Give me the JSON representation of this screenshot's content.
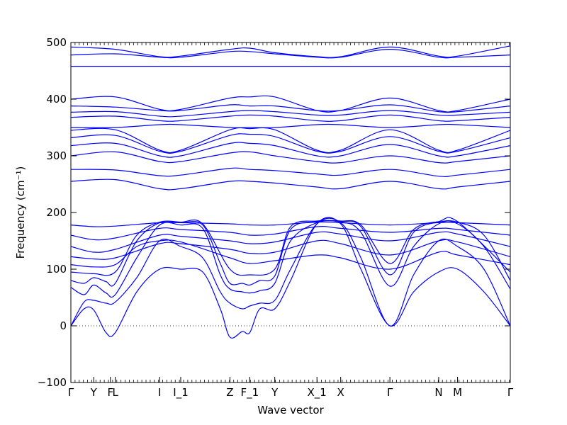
{
  "chart_data": {
    "type": "line",
    "title": "",
    "xlabel": "Wave vector",
    "ylabel": "Frequency (cm⁻¹)",
    "ylim": [
      -100,
      500
    ],
    "yticks": [
      -100,
      0,
      100,
      200,
      300,
      400,
      500
    ],
    "xrange": [
      0,
      1000
    ],
    "kpoints": [
      {
        "label": "Γ",
        "x": 0
      },
      {
        "label": "Y",
        "x": 52
      },
      {
        "label": "F",
        "x": 90
      },
      {
        "label": "L",
        "x": 101
      },
      {
        "label": "I",
        "x": 202
      },
      {
        "label": "I_1",
        "x": 250
      },
      {
        "label": "Z",
        "x": 362
      },
      {
        "label": "F_1",
        "x": 407
      },
      {
        "label": "Y",
        "x": 464
      },
      {
        "label": "X_1",
        "x": 560
      },
      {
        "label": "X",
        "x": 614
      },
      {
        "label": "Γ",
        "x": 726
      },
      {
        "label": "N",
        "x": 837
      },
      {
        "label": "M",
        "x": 880
      },
      {
        "label": "Γ",
        "x": 1000
      }
    ],
    "minor_tick_spacing": 9.5,
    "zero_line": true,
    "grid": false,
    "series_color": "#0000ff",
    "series": [
      {
        "x": [
          0,
          30,
          52,
          80,
          101,
          150,
          202,
          250,
          300,
          340,
          362,
          390,
          407,
          430,
          464,
          500,
          560,
          614,
          660,
          726,
          780,
          837,
          880,
          940,
          1000
        ],
        "y": [
          0,
          30,
          28,
          -12,
          -12,
          60,
          100,
          100,
          95,
          30,
          -20,
          -10,
          -12,
          30,
          30,
          80,
          180,
          180,
          100,
          0,
          60,
          95,
          100,
          60,
          0
        ]
      },
      {
        "x": [
          0,
          30,
          52,
          80,
          101,
          150,
          202,
          250,
          300,
          340,
          362,
          390,
          407,
          430,
          464,
          500,
          560,
          614,
          660,
          726,
          780,
          837,
          880,
          940,
          1000
        ],
        "y": [
          0,
          42,
          45,
          40,
          42,
          85,
          150,
          140,
          120,
          60,
          40,
          30,
          35,
          40,
          45,
          100,
          180,
          182,
          120,
          0,
          90,
          150,
          140,
          100,
          0
        ]
      },
      {
        "x": [
          0,
          30,
          52,
          80,
          101,
          150,
          202,
          250,
          300,
          340,
          362,
          390,
          407,
          430,
          464,
          500,
          560,
          614,
          660,
          726,
          780,
          837,
          880,
          940,
          1000
        ],
        "y": [
          68,
          55,
          72,
          58,
          55,
          120,
          178,
          178,
          172,
          90,
          65,
          60,
          58,
          62,
          75,
          150,
          182,
          183,
          165,
          70,
          140,
          180,
          180,
          140,
          65
        ]
      },
      {
        "x": [
          0,
          30,
          52,
          80,
          101,
          150,
          202,
          250,
          300,
          340,
          362,
          390,
          407,
          430,
          464,
          500,
          560,
          614,
          660,
          726,
          780,
          837,
          880,
          940,
          1000
        ],
        "y": [
          80,
          75,
          85,
          78,
          75,
          150,
          182,
          182,
          178,
          110,
          75,
          75,
          72,
          80,
          88,
          170,
          184,
          184,
          175,
          90,
          165,
          183,
          183,
          160,
          80
        ]
      },
      {
        "x": [
          0,
          52,
          101,
          150,
          202,
          250,
          300,
          362,
          407,
          464,
          500,
          560,
          614,
          660,
          726,
          780,
          837,
          880,
          1000
        ],
        "y": [
          95,
          92,
          95,
          160,
          183,
          183,
          180,
          100,
          90,
          100,
          175,
          185,
          185,
          178,
          110,
          170,
          184,
          184,
          95
        ]
      },
      {
        "x": [
          0,
          52,
          101,
          150,
          202,
          250,
          362,
          407,
          464,
          560,
          614,
          726,
          837,
          880,
          1000
        ],
        "y": [
          108,
          104,
          108,
          140,
          150,
          148,
          120,
          110,
          115,
          125,
          120,
          100,
          130,
          125,
          108
        ]
      },
      {
        "x": [
          0,
          52,
          101,
          202,
          250,
          362,
          407,
          464,
          560,
          614,
          726,
          837,
          880,
          1000
        ],
        "y": [
          122,
          118,
          120,
          145,
          145,
          135,
          128,
          130,
          150,
          145,
          125,
          150,
          148,
          122
        ]
      },
      {
        "x": [
          0,
          52,
          101,
          202,
          250,
          362,
          407,
          464,
          560,
          614,
          726,
          837,
          880,
          1000
        ],
        "y": [
          140,
          130,
          135,
          160,
          158,
          150,
          145,
          148,
          165,
          162,
          150,
          165,
          162,
          140
        ]
      },
      {
        "x": [
          0,
          52,
          101,
          202,
          250,
          362,
          407,
          464,
          560,
          614,
          726,
          837,
          880,
          1000
        ],
        "y": [
          160,
          152,
          155,
          172,
          170,
          165,
          160,
          162,
          175,
          172,
          165,
          172,
          170,
          160
        ]
      },
      {
        "x": [
          0,
          52,
          101,
          202,
          250,
          362,
          407,
          464,
          560,
          614,
          726,
          837,
          880,
          1000
        ],
        "y": [
          178,
          175,
          176,
          182,
          182,
          180,
          178,
          178,
          183,
          182,
          178,
          182,
          182,
          178
        ]
      },
      {
        "x": [
          0,
          101,
          202,
          250,
          362,
          407,
          464,
          560,
          614,
          726,
          837,
          880,
          1000
        ],
        "y": [
          255,
          258,
          242,
          242,
          255,
          255,
          252,
          245,
          242,
          255,
          242,
          245,
          255
        ]
      },
      {
        "x": [
          0,
          101,
          202,
          250,
          362,
          407,
          464,
          560,
          614,
          726,
          837,
          880,
          1000
        ],
        "y": [
          276,
          275,
          265,
          266,
          278,
          276,
          274,
          268,
          266,
          276,
          264,
          266,
          276
        ]
      },
      {
        "x": [
          0,
          101,
          202,
          250,
          362,
          407,
          464,
          560,
          614,
          726,
          837,
          880,
          1000
        ],
        "y": [
          300,
          307,
          290,
          290,
          305,
          307,
          300,
          290,
          288,
          300,
          288,
          290,
          300
        ]
      },
      {
        "x": [
          0,
          101,
          202,
          250,
          362,
          407,
          464,
          560,
          614,
          726,
          837,
          880,
          1000
        ],
        "y": [
          318,
          322,
          300,
          300,
          322,
          322,
          318,
          300,
          300,
          320,
          300,
          300,
          318
        ]
      },
      {
        "x": [
          0,
          101,
          202,
          250,
          362,
          407,
          464,
          560,
          614,
          726,
          837,
          880,
          1000
        ],
        "y": [
          332,
          336,
          308,
          308,
          336,
          338,
          334,
          308,
          308,
          334,
          308,
          308,
          332
        ]
      },
      {
        "x": [
          0,
          101,
          202,
          250,
          362,
          407,
          464,
          560,
          614,
          726,
          837,
          880,
          1000
        ],
        "y": [
          345,
          346,
          310,
          310,
          346,
          348,
          346,
          310,
          310,
          346,
          310,
          310,
          345
        ]
      },
      {
        "x": [
          0,
          101,
          202,
          250,
          362,
          407,
          464,
          560,
          614,
          726,
          837,
          880,
          1000
        ],
        "y": [
          350,
          350,
          355,
          355,
          350,
          350,
          350,
          355,
          355,
          350,
          355,
          355,
          350
        ]
      },
      {
        "x": [
          0,
          101,
          202,
          250,
          362,
          407,
          464,
          560,
          614,
          726,
          837,
          880,
          1000
        ],
        "y": [
          368,
          370,
          362,
          362,
          370,
          372,
          370,
          362,
          362,
          372,
          362,
          362,
          368
        ]
      },
      {
        "x": [
          0,
          101,
          202,
          250,
          362,
          407,
          464,
          560,
          614,
          726,
          837,
          880,
          1000
        ],
        "y": [
          377,
          378,
          370,
          370,
          378,
          380,
          378,
          372,
          372,
          380,
          372,
          372,
          377
        ]
      },
      {
        "x": [
          0,
          101,
          202,
          250,
          362,
          407,
          464,
          560,
          614,
          726,
          837,
          880,
          1000
        ],
        "y": [
          388,
          386,
          380,
          380,
          390,
          388,
          388,
          380,
          380,
          390,
          378,
          378,
          388
        ]
      },
      {
        "x": [
          0,
          101,
          202,
          250,
          362,
          407,
          464,
          560,
          614,
          726,
          837,
          880,
          1000
        ],
        "y": [
          400,
          404,
          382,
          382,
          402,
          404,
          404,
          380,
          380,
          402,
          380,
          380,
          400
        ]
      },
      {
        "x": [
          0,
          202,
          464,
          726,
          1000
        ],
        "y": [
          458,
          458,
          458,
          458,
          458
        ]
      },
      {
        "x": [
          0,
          101,
          202,
          250,
          362,
          407,
          464,
          560,
          614,
          726,
          837,
          880,
          1000
        ],
        "y": [
          478,
          480,
          474,
          474,
          484,
          484,
          480,
          474,
          474,
          488,
          474,
          474,
          478
        ]
      },
      {
        "x": [
          0,
          101,
          202,
          250,
          362,
          407,
          464,
          560,
          614,
          726,
          837,
          880,
          1000
        ],
        "y": [
          492,
          488,
          475,
          476,
          488,
          490,
          482,
          475,
          475,
          492,
          476,
          476,
          494
        ]
      }
    ]
  }
}
